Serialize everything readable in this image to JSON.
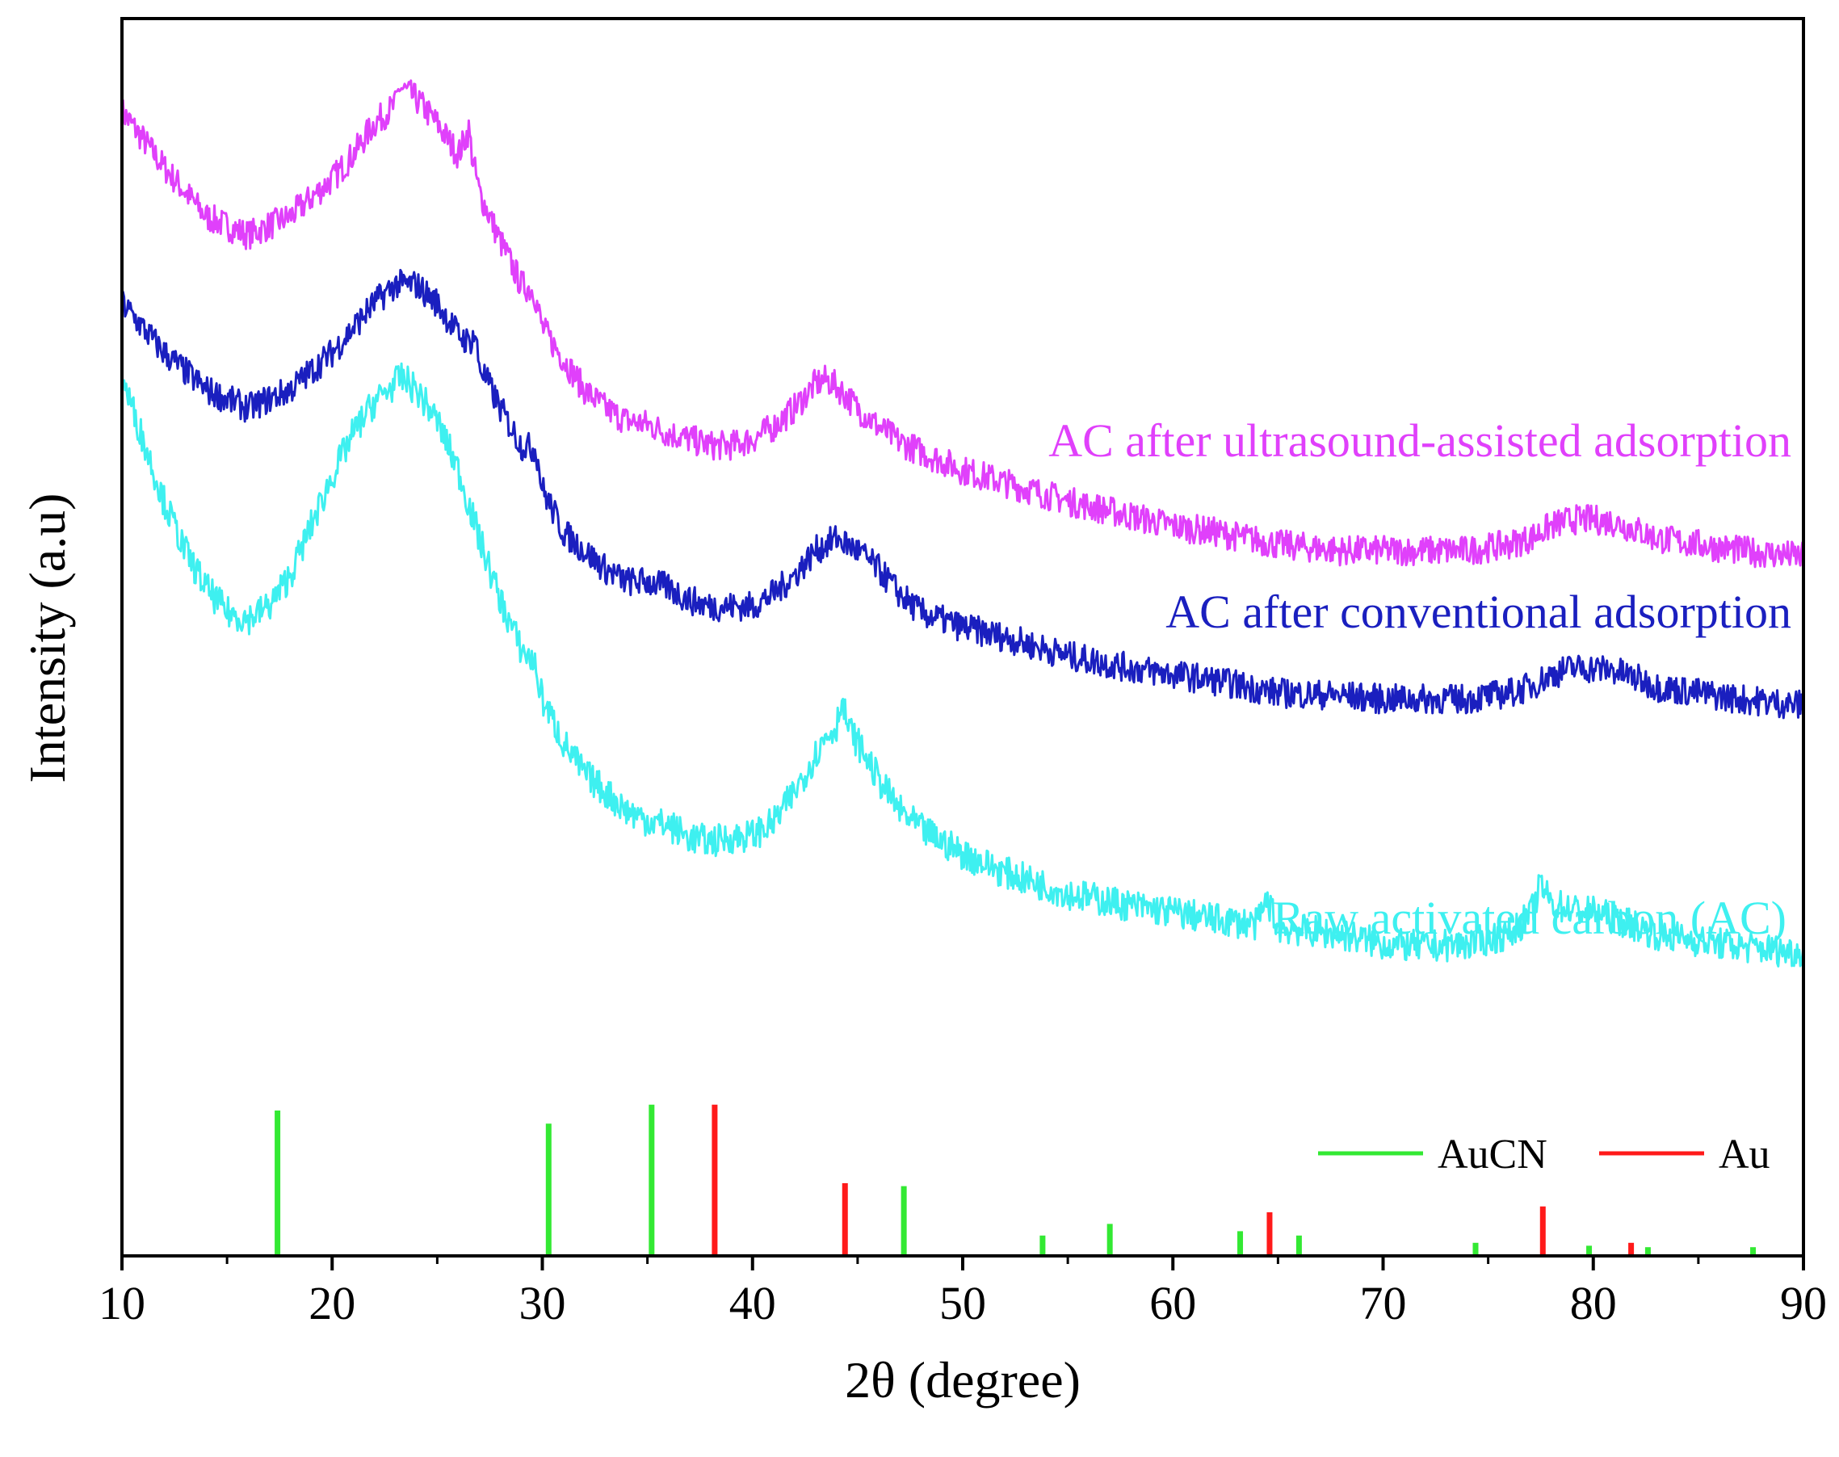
{
  "chart_data": {
    "type": "line",
    "xlabel": "2θ (degree)",
    "ylabel": "Intensity (a.u)",
    "xlim": [
      10,
      90
    ],
    "ylim": [
      0,
      100
    ],
    "xticks": [
      10,
      20,
      30,
      40,
      50,
      60,
      70,
      80,
      90
    ],
    "series": [
      {
        "name": "AC after ultrasound-assisted adsorption",
        "color": "#e040fb",
        "noise": 1.2,
        "x": [
          10,
          12,
          14,
          16,
          18,
          20,
          21,
          22,
          23,
          23.2,
          24,
          25,
          26,
          26.5,
          26.7,
          27,
          28,
          29,
          29.6,
          30,
          31,
          32,
          33,
          34,
          35,
          36,
          37,
          38,
          39,
          40,
          41,
          42,
          43,
          43.5,
          44,
          45,
          46,
          47,
          48,
          50,
          52,
          55,
          58,
          60,
          62,
          65,
          68,
          70,
          72,
          74,
          76,
          77,
          78,
          79,
          80,
          81,
          82,
          83,
          85,
          87,
          90
        ],
        "y": [
          92.5,
          88,
          84,
          82.5,
          84,
          87,
          89,
          91.5,
          93,
          94.5,
          93.5,
          91.5,
          89,
          91,
          88.5,
          86,
          82,
          78.5,
          78,
          75,
          72.5,
          70,
          68.5,
          67.5,
          67.2,
          66.5,
          66,
          65.5,
          65.5,
          66,
          67,
          68.5,
          70.5,
          70.8,
          70.3,
          68.5,
          67,
          65.8,
          65,
          63.5,
          62.5,
          61,
          59.8,
          59,
          58.5,
          57.5,
          57,
          57,
          57,
          57,
          57.5,
          58,
          59,
          59.5,
          59.5,
          59.3,
          58.7,
          58,
          57.5,
          57,
          56.5
        ]
      },
      {
        "name": "AC after conventional adsorption",
        "color": "#1a1fbf",
        "noise": 1.2,
        "x": [
          10,
          12,
          14,
          16,
          18,
          20,
          21,
          22,
          23,
          24,
          25,
          26,
          26.5,
          26.8,
          27,
          28,
          29,
          29.7,
          30,
          31,
          32,
          33,
          34,
          35,
          36,
          37,
          38,
          39,
          40,
          41,
          42,
          43,
          44,
          45,
          46,
          47,
          48,
          50,
          52,
          55,
          58,
          60,
          62,
          65,
          68,
          70,
          72,
          74,
          76,
          77,
          78,
          79,
          80,
          81,
          82,
          83,
          85,
          87,
          90
        ],
        "y": [
          77,
          73,
          70,
          68.5,
          70,
          73,
          75,
          77,
          78.5,
          78.5,
          77,
          74.5,
          73.8,
          74.5,
          72,
          68.5,
          65.5,
          65.2,
          62,
          58.5,
          57,
          55.5,
          54.5,
          54.5,
          54,
          53,
          52.5,
          52.5,
          52.5,
          53.5,
          55,
          57,
          58,
          57,
          55.5,
          53.5,
          52,
          50.8,
          50,
          48.5,
          47.5,
          47,
          46.5,
          45.5,
          45.3,
          45,
          45,
          45,
          45.5,
          46,
          47,
          47.5,
          47.5,
          47.3,
          46.7,
          46,
          45.5,
          45,
          44.5
        ]
      },
      {
        "name": "Raw activated carbon (AC)",
        "color": "#3ef0f0",
        "noise": 1.3,
        "x": [
          10,
          11,
          12,
          13,
          14,
          15,
          16,
          17,
          18,
          19,
          20,
          21,
          22,
          23,
          23.3,
          24,
          25,
          26,
          27,
          28,
          29,
          29.6,
          30,
          31,
          32,
          33,
          34,
          35,
          36,
          37,
          38,
          39,
          40,
          41,
          42,
          43,
          43.5,
          44,
          44.2,
          44.6,
          45,
          46,
          47,
          48,
          50,
          52,
          55,
          58,
          60,
          62,
          64,
          64.5,
          65,
          68,
          70,
          72,
          74,
          76,
          77,
          77.5,
          78,
          79,
          80,
          81,
          82,
          83,
          85,
          87,
          90
        ],
        "y": [
          71,
          66,
          61,
          57,
          54,
          52,
          51.5,
          52.5,
          55,
          59,
          63,
          66.5,
          69,
          70.5,
          71,
          70,
          67.5,
          63.5,
          58,
          53,
          49,
          48,
          45,
          41.5,
          39,
          37.5,
          36,
          35.2,
          34.8,
          33.8,
          33.5,
          33.8,
          34,
          35,
          37.5,
          40.5,
          42,
          42.8,
          45,
          42.5,
          41.5,
          38.5,
          36,
          34.5,
          32.5,
          31,
          29.3,
          28.3,
          27.8,
          27.2,
          26.8,
          28.8,
          26.5,
          26,
          25.2,
          25,
          25.2,
          26,
          27.5,
          30,
          28.5,
          28,
          27.8,
          27.3,
          26.7,
          26,
          25.5,
          25,
          24.5
        ]
      }
    ],
    "reference_series": [
      {
        "name": "AuCN",
        "color": "#33e933",
        "x": [
          17.4,
          30.3,
          35.2,
          47.2,
          53.8,
          57.0,
          63.2,
          66.0,
          74.4,
          79.8,
          82.6,
          87.6
        ],
        "y": [
          100,
          91,
          104,
          48,
          14,
          22,
          17,
          14,
          9,
          7,
          6,
          6
        ]
      },
      {
        "name": "Au",
        "color": "#ff1a1a",
        "x": [
          38.2,
          44.4,
          64.6,
          77.6,
          81.8
        ],
        "y": [
          104,
          50,
          30,
          34,
          9
        ]
      }
    ],
    "series_labels": {
      "ultrasound": "AC after ultrasound-assisted adsorption",
      "conventional": "AC after conventional adsorption",
      "raw": "Raw activated carbon (AC)"
    },
    "legend": {
      "position": "bottom-right",
      "entries": [
        {
          "label": "AuCN",
          "color": "#33e933"
        },
        {
          "label": "Au",
          "color": "#ff1a1a"
        }
      ]
    }
  }
}
